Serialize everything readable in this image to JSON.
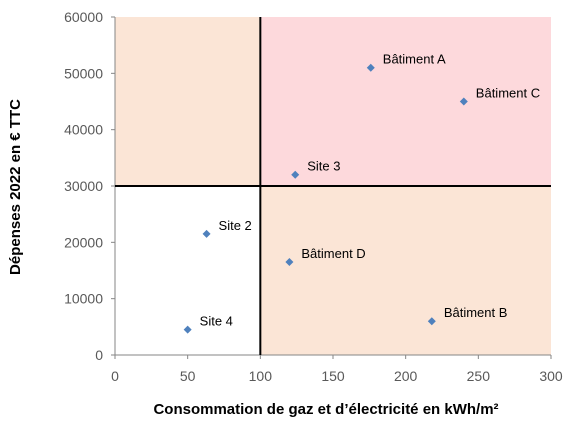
{
  "chart_data": {
    "type": "scatter",
    "title": "",
    "xlabel": "Consommation de gaz et d’électricité en kWh/m²",
    "ylabel": "Dépenses 2022 en € TTC",
    "xlim": [
      0,
      300
    ],
    "ylim": [
      0,
      60000
    ],
    "x_ticks": [
      "0",
      "50",
      "100",
      "150",
      "200",
      "250",
      "300"
    ],
    "y_ticks": [
      "0",
      "10000",
      "20000",
      "30000",
      "40000",
      "50000",
      "60000"
    ],
    "grid": false,
    "legend": "none",
    "quadrant_split": {
      "x": 100,
      "y": 30000
    },
    "quadrant_colors": {
      "top_left": "#fbe5d6",
      "top_right": "#fdd9dc",
      "bottom_left": "#ffffff",
      "bottom_right": "#fbe5d6"
    },
    "marker_color": "#4f81bd",
    "points": [
      {
        "label": "Bâtiment A",
        "x": 176,
        "y": 51000
      },
      {
        "label": "Bâtiment C",
        "x": 240,
        "y": 45000
      },
      {
        "label": "Site 3",
        "x": 124,
        "y": 32000
      },
      {
        "label": "Site 2",
        "x": 63,
        "y": 21500
      },
      {
        "label": "Bâtiment D",
        "x": 120,
        "y": 16500
      },
      {
        "label": "Bâtiment B",
        "x": 218,
        "y": 6000
      },
      {
        "label": "Site 4",
        "x": 50,
        "y": 4500
      }
    ]
  }
}
